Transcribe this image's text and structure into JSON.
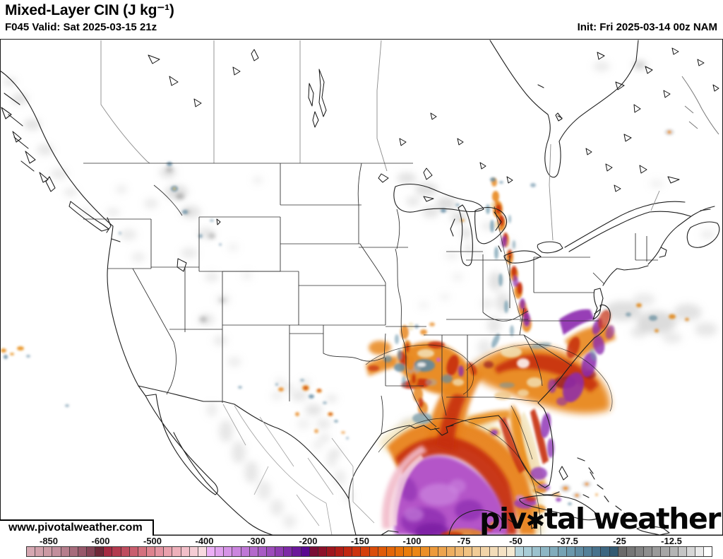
{
  "header": {
    "title": "Mixed-Layer CIN (J kg⁻¹)",
    "subtitle": "F045 Valid: Sat 2025-03-15 21z",
    "init": "Init: Fri 2025-03-14 00z NAM"
  },
  "watermarks": {
    "url": "www.pivotalweather.com",
    "brand_prefix": "piv",
    "brand_star": "✱",
    "brand_suffix": "tal weather"
  },
  "colorbar": {
    "labels": [
      "-850",
      "-600",
      "-500",
      "-400",
      "-300",
      "-200",
      "-150",
      "-100",
      "-75",
      "-50",
      "-37.5",
      "-25",
      "-12.5"
    ],
    "border_color": "#3a3a3a",
    "cells": [
      "#d6a8b2",
      "#d1a1ab",
      "#cb99a3",
      "#c28e9c",
      "#b57e8c",
      "#a76c7c",
      "#97586a",
      "#854456",
      "#6e2838",
      "#a62a42",
      "#b23a4e",
      "#be4c5e",
      "#c95e6e",
      "#d4707e",
      "#de828e",
      "#e492a0",
      "#e9a0ac",
      "#eeb0ba",
      "#f2bec8",
      "#f5ccd4",
      "#f8dae0",
      "#ecaff6",
      "#e1a1ee",
      "#d693e6",
      "#cb85de",
      "#c077d6",
      "#b569cc",
      "#a95bc4",
      "#9c4cba",
      "#8e3cb0",
      "#7e2aa6",
      "#6b179a",
      "#5a0890",
      "#7a0c36",
      "#8c102a",
      "#9e161e",
      "#b01c16",
      "#c02610",
      "#cc320e",
      "#d43e0c",
      "#da4c0a",
      "#e05a08",
      "#e46608",
      "#e87208",
      "#ea7c0a",
      "#ec8614",
      "#ec9028",
      "#ed9a3c",
      "#eda44e",
      "#eeae60",
      "#efb872",
      "#f0c282",
      "#f1cc96",
      "#f2d4a8",
      "#f3dcb8",
      "#f4e2c4",
      "#f5ead2",
      "#b4d4dc",
      "#a8ccd6",
      "#9cc2ce",
      "#8eb6c4",
      "#82acbc",
      "#76a2b4",
      "#6c98ac",
      "#608ca2",
      "#548098",
      "#48728c",
      "#3e6680",
      "#345a72",
      "#6a6a6a",
      "#767676",
      "#828282",
      "#8e8e8e",
      "#9a9a9a",
      "#a6a6a6",
      "#b4b4b4",
      "#c4c4c4",
      "#d6d6d6",
      "#eaeaea",
      "#ffffff"
    ]
  },
  "chart_data": {
    "type": "heatmap",
    "title": "Mixed-Layer CIN (J kg⁻¹)",
    "units": "J kg⁻¹",
    "colorbar_ticks": [
      -850,
      -600,
      -500,
      -400,
      -300,
      -200,
      -150,
      -100,
      -75,
      -50,
      -37.5,
      -25,
      -12.5
    ],
    "model": "NAM",
    "forecast_hour": "F045",
    "valid_time": "Sat 2025-03-15 21z",
    "init_time": "Fri 2025-03-14 00z"
  }
}
